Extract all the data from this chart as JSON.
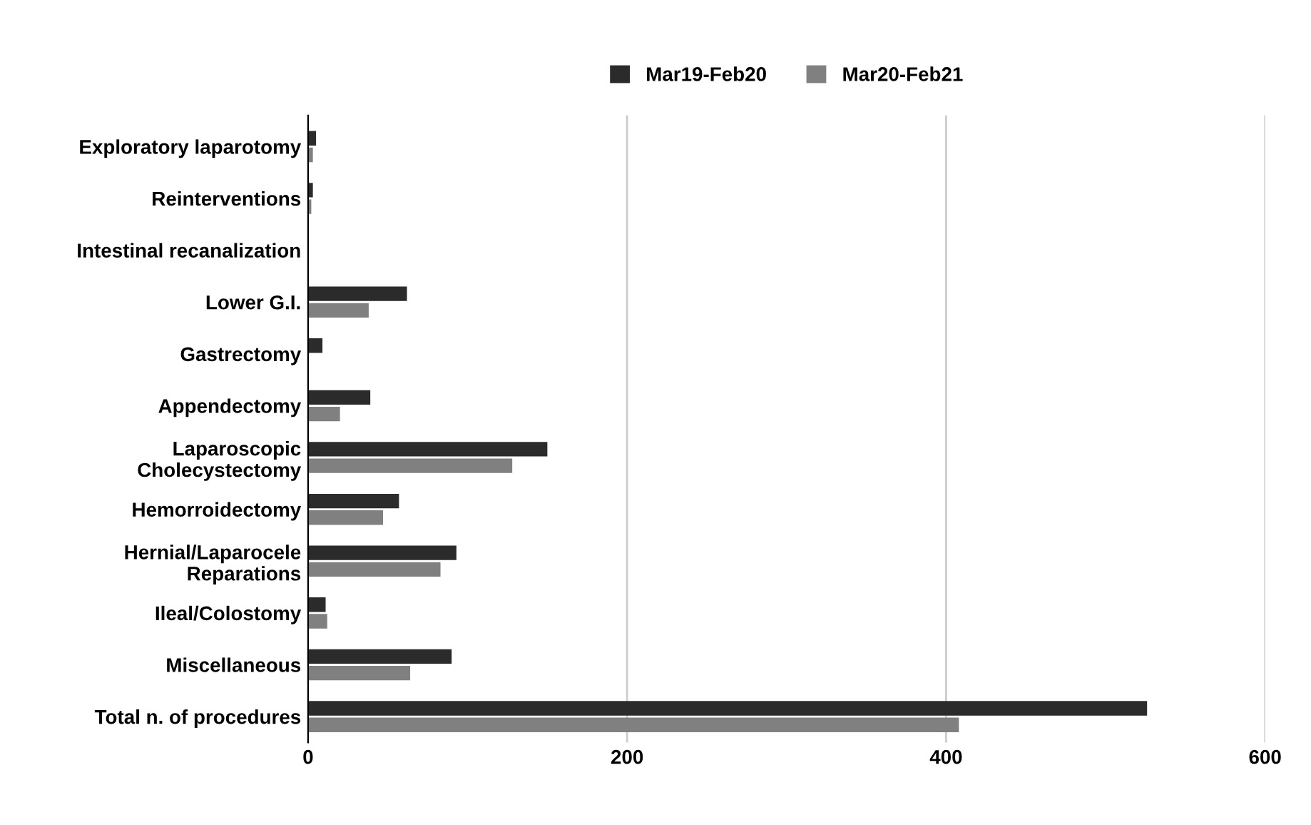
{
  "chart_data": {
    "type": "bar",
    "orientation": "horizontal",
    "categories": [
      "Exploratory laparotomy",
      "Reinterventions",
      "Intestinal recanalization",
      "Lower G.I.",
      "Gastrectomy",
      "Appendectomy",
      "Laparoscopic\nCholecystectomy",
      "Hemorroidectomy",
      "Hernial/Laparocele\nReparations",
      "Ileal/Colostomy",
      "Miscellaneous",
      "Total n. of procedures"
    ],
    "series": [
      {
        "name": "Mar19-Feb20",
        "color": "#2b2b2b",
        "values": [
          5,
          3,
          0,
          62,
          9,
          39,
          150,
          57,
          93,
          11,
          90,
          526
        ]
      },
      {
        "name": "Mar20-Feb21",
        "color": "#808080",
        "values": [
          3,
          2,
          null,
          38,
          null,
          20,
          128,
          47,
          83,
          12,
          64,
          408
        ]
      }
    ],
    "xlim": [
      0,
      600
    ],
    "xticks": [
      0,
      200,
      400,
      600
    ],
    "grid": "x",
    "legend": "top"
  }
}
